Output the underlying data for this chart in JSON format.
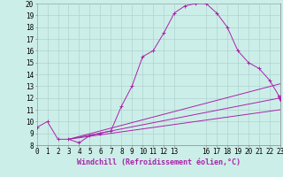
{
  "xlabel": "Windchill (Refroidissement éolien,°C)",
  "background_color": "#cceee8",
  "line_color": "#aa22aa",
  "grid_color": "#aacccc",
  "xlim": [
    0,
    23
  ],
  "ylim": [
    8,
    20
  ],
  "xticks": [
    0,
    1,
    2,
    3,
    4,
    5,
    6,
    7,
    8,
    9,
    10,
    11,
    12,
    13,
    16,
    17,
    18,
    19,
    20,
    21,
    22,
    23
  ],
  "yticks": [
    8,
    9,
    10,
    11,
    12,
    13,
    14,
    15,
    16,
    17,
    18,
    19,
    20
  ],
  "main_x": [
    0,
    1,
    2,
    3,
    4,
    5,
    6,
    7,
    8,
    9,
    10,
    11,
    12,
    13,
    14,
    15,
    16,
    17,
    18,
    19,
    20,
    21,
    22,
    23
  ],
  "main_y": [
    9.5,
    10.0,
    8.5,
    8.5,
    8.2,
    8.8,
    9.0,
    9.2,
    11.3,
    13.0,
    15.5,
    16.0,
    17.5,
    19.2,
    19.8,
    20.0,
    20.0,
    19.2,
    18.0,
    16.0,
    15.0,
    14.5,
    13.5,
    12.0
  ],
  "line1_x": [
    3,
    23
  ],
  "line1_y": [
    8.5,
    11.0
  ],
  "line2_x": [
    3,
    23
  ],
  "line2_y": [
    8.5,
    12.0
  ],
  "line3_x": [
    3,
    23
  ],
  "line3_y": [
    8.5,
    13.2
  ],
  "triangle_x": 23,
  "triangle_y": 12.0,
  "font_size": 6,
  "tick_fontsize": 5.5
}
